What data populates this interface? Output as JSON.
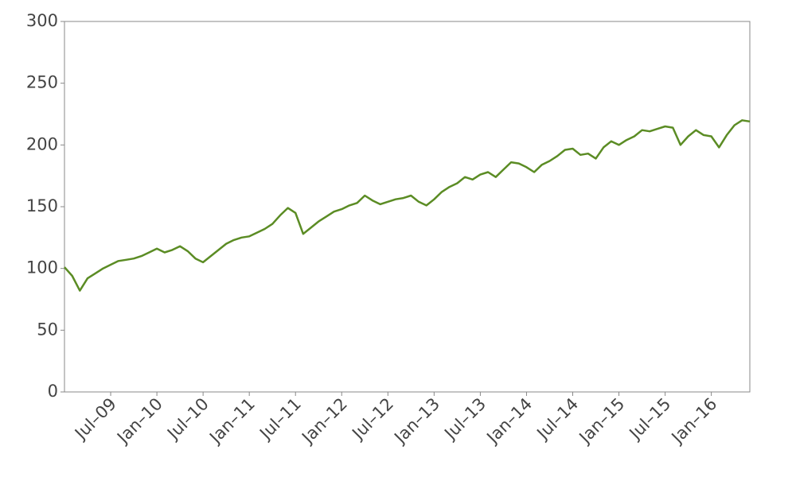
{
  "chart_data": {
    "type": "line",
    "x": [
      "2009-01",
      "2009-02",
      "2009-03",
      "2009-04",
      "2009-05",
      "2009-06",
      "2009-07",
      "2009-08",
      "2009-09",
      "2009-10",
      "2009-11",
      "2009-12",
      "2010-01",
      "2010-02",
      "2010-03",
      "2010-04",
      "2010-05",
      "2010-06",
      "2010-07",
      "2010-08",
      "2010-09",
      "2010-10",
      "2010-11",
      "2010-12",
      "2011-01",
      "2011-02",
      "2011-03",
      "2011-04",
      "2011-05",
      "2011-06",
      "2011-07",
      "2011-08",
      "2011-09",
      "2011-10",
      "2011-11",
      "2011-12",
      "2012-01",
      "2012-02",
      "2012-03",
      "2012-04",
      "2012-05",
      "2012-06",
      "2012-07",
      "2012-08",
      "2012-09",
      "2012-10",
      "2012-11",
      "2012-12",
      "2013-01",
      "2013-02",
      "2013-03",
      "2013-04",
      "2013-05",
      "2013-06",
      "2013-07",
      "2013-08",
      "2013-09",
      "2013-10",
      "2013-11",
      "2013-12",
      "2014-01",
      "2014-02",
      "2014-03",
      "2014-04",
      "2014-05",
      "2014-06",
      "2014-07",
      "2014-08",
      "2014-09",
      "2014-10",
      "2014-11",
      "2014-12",
      "2015-01",
      "2015-02",
      "2015-03",
      "2015-04",
      "2015-05",
      "2015-06",
      "2015-07",
      "2015-08",
      "2015-09",
      "2015-10",
      "2015-11",
      "2015-12",
      "2016-01",
      "2016-02",
      "2016-03",
      "2016-04",
      "2016-05",
      "2016-06"
    ],
    "series": [
      {
        "color": "#5b8c24",
        "values": [
          101,
          94,
          82,
          92,
          96,
          100,
          103,
          106,
          107,
          108,
          110,
          113,
          116,
          113,
          115,
          118,
          114,
          108,
          105,
          110,
          115,
          120,
          123,
          125,
          126,
          129,
          132,
          136,
          143,
          149,
          145,
          128,
          133,
          138,
          142,
          146,
          148,
          151,
          153,
          159,
          155,
          152,
          154,
          156,
          157,
          159,
          154,
          151,
          156,
          162,
          166,
          169,
          174,
          172,
          176,
          178,
          174,
          180,
          186,
          185,
          182,
          178,
          184,
          187,
          191,
          196,
          197,
          192,
          193,
          189,
          198,
          203,
          200,
          204,
          207,
          212,
          211,
          213,
          215,
          214,
          200,
          207,
          212,
          208,
          207,
          198,
          208,
          216,
          220,
          219
        ]
      }
    ],
    "xlim": [
      "2009-01",
      "2016-06"
    ],
    "xticks": [
      {
        "value": "2009-07",
        "label": "Jul–09"
      },
      {
        "value": "2010-01",
        "label": "Jan–10"
      },
      {
        "value": "2010-07",
        "label": "Jul–10"
      },
      {
        "value": "2011-01",
        "label": "Jan–11"
      },
      {
        "value": "2011-07",
        "label": "Jul–11"
      },
      {
        "value": "2012-01",
        "label": "Jan–12"
      },
      {
        "value": "2012-07",
        "label": "Jul–12"
      },
      {
        "value": "2013-01",
        "label": "Jan–13"
      },
      {
        "value": "2013-07",
        "label": "Jul–13"
      },
      {
        "value": "2014-01",
        "label": "Jan–14"
      },
      {
        "value": "2014-07",
        "label": "Jul–14"
      },
      {
        "value": "2015-01",
        "label": "Jan–15"
      },
      {
        "value": "2015-07",
        "label": "Jul–15"
      },
      {
        "value": "2016-01",
        "label": "Jan–16"
      }
    ],
    "ylim": [
      0,
      300
    ],
    "yticks": [
      0,
      50,
      100,
      150,
      200,
      250,
      300
    ],
    "grid": false
  }
}
